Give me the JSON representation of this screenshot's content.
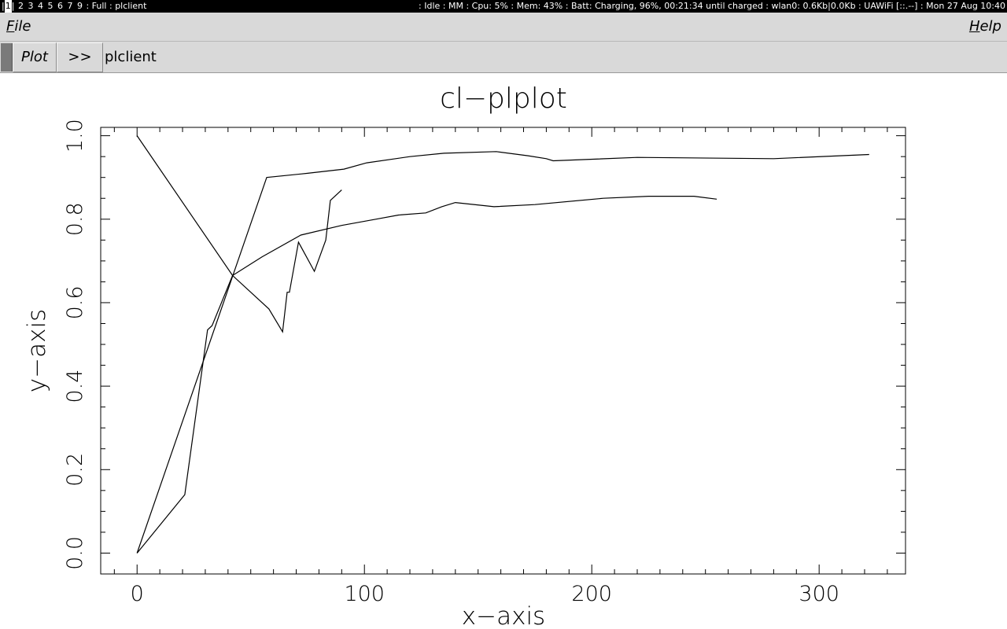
{
  "status_bar": {
    "workspaces": [
      "1",
      "2",
      "3",
      "4",
      "5",
      "6",
      "7",
      "9"
    ],
    "active_workspace": "1",
    "layout": "Full",
    "window": "plclient",
    "right_text": ": Idle : MM : Cpu: 5% : Mem: 43% : Batt: Charging, 96%, 00:21:34 until charged : wlan0: 0.6Kb|0.0Kb : UAWiFi [::.--] : Mon 27 Aug 10:40"
  },
  "menu": {
    "file_accel": "F",
    "file_rest": "ile",
    "help_accel": "H",
    "help_rest": "elp"
  },
  "toolbar": {
    "plot_tab": "Plot",
    "next_button": ">>",
    "app_label": "plclient"
  },
  "chart_data": {
    "type": "line",
    "title": "cl−plplot",
    "xlabel": "x−axis",
    "ylabel": "y−axis",
    "xlim": [
      -16,
      338
    ],
    "ylim": [
      -0.05,
      1.02
    ],
    "xticks_major": [
      0,
      100,
      200,
      300
    ],
    "xtick_labels": [
      "0",
      "100",
      "200",
      "300"
    ],
    "xticks_minor": [
      -10,
      10,
      20,
      30,
      40,
      50,
      60,
      70,
      80,
      90,
      110,
      120,
      130,
      140,
      150,
      160,
      170,
      180,
      190,
      210,
      220,
      230,
      240,
      250,
      260,
      270,
      280,
      290,
      310,
      320,
      330
    ],
    "yticks_major": [
      0.0,
      0.2,
      0.4,
      0.6,
      0.8,
      1.0
    ],
    "ytick_labels": [
      "0.0",
      "0.2",
      "0.4",
      "0.6",
      "0.8",
      "1.0"
    ],
    "yticks_minor": [
      0.05,
      0.1,
      0.15,
      0.25,
      0.3,
      0.35,
      0.45,
      0.5,
      0.55,
      0.65,
      0.7,
      0.75,
      0.85,
      0.9,
      0.95
    ],
    "grid": false,
    "series": [
      {
        "x": [
          0,
          42,
          58,
          64,
          66,
          67,
          71,
          78,
          83,
          85,
          90
        ],
        "y": [
          1.0,
          0.665,
          0.585,
          0.53,
          0.625,
          0.625,
          0.745,
          0.675,
          0.75,
          0.845,
          0.87
        ]
      },
      {
        "x": [
          0,
          21,
          31,
          33,
          42,
          55,
          72,
          90,
          105,
          115,
          127,
          134,
          140,
          157,
          175,
          205,
          225,
          245,
          255
        ],
        "y": [
          0.0,
          0.14,
          0.535,
          0.545,
          0.665,
          0.71,
          0.762,
          0.785,
          0.8,
          0.81,
          0.815,
          0.83,
          0.84,
          0.83,
          0.835,
          0.85,
          0.855,
          0.855,
          0.848
        ]
      },
      {
        "x": [
          0,
          57,
          75,
          91,
          101,
          120,
          135,
          158,
          172,
          180,
          183,
          220,
          280,
          322
        ],
        "y": [
          0.0,
          0.9,
          0.91,
          0.92,
          0.935,
          0.95,
          0.958,
          0.962,
          0.952,
          0.945,
          0.94,
          0.948,
          0.945,
          0.955
        ]
      }
    ]
  }
}
